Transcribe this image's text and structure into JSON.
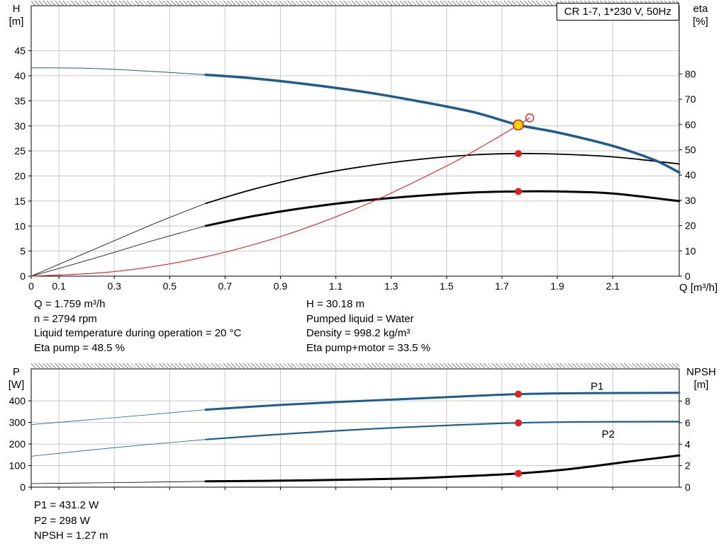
{
  "colors": {
    "blue": "#1d5c8c",
    "black": "#000000",
    "red": "#e02020",
    "yellow": "#ffd400",
    "grid": "#c8c8c8",
    "frame": "#000000"
  },
  "info_panel": {
    "left": [
      "Q = 1.759 m³/h",
      "n = 2794 rpm",
      "Liquid temperature during operation = 20 °C",
      "Eta pump = 48.5 %"
    ],
    "right": [
      "H = 30.18 m",
      "Pumped liquid = Water",
      "Density = 998.2 kg/m³",
      "Eta pump+motor = 33.5 %"
    ]
  },
  "result_panel": [
    "P1 = 431.2 W",
    "P2 = 298 W",
    "NPSH = 1.27 m"
  ],
  "chart_data": [
    {
      "id": "top",
      "type": "line",
      "title": "CR 1-7, 1*230 V, 50Hz",
      "x_axis": {
        "label": "Q [m³/h]",
        "min": 0,
        "max": 2.34,
        "ticks": [
          0,
          0.1,
          0.3,
          0.5,
          0.7,
          0.9,
          1.1,
          1.3,
          1.5,
          1.7,
          1.9,
          2.1
        ]
      },
      "y_left": {
        "label_lines": [
          "H",
          "[m]"
        ],
        "min": 0,
        "max": 54,
        "ticks": [
          0,
          5,
          10,
          15,
          20,
          25,
          30,
          35,
          40,
          45
        ]
      },
      "y_right": {
        "label_lines": [
          "eta",
          "[%]"
        ],
        "min": 0,
        "max": 107,
        "ticks": [
          0,
          10,
          20,
          30,
          40,
          50,
          60,
          70,
          80
        ]
      },
      "series": [
        {
          "name": "eta-pump-curve-thin",
          "axis": "right",
          "color": "black",
          "width": 0.8,
          "points": [
            [
              0,
              0
            ],
            [
              0.15,
              7
            ],
            [
              0.3,
              14
            ],
            [
              0.45,
              21
            ],
            [
              0.63,
              28.8
            ]
          ]
        },
        {
          "name": "eta-pump-curve",
          "axis": "right",
          "color": "black",
          "width": 1.8,
          "points": [
            [
              0.63,
              28.8
            ],
            [
              0.8,
              34.3
            ],
            [
              1.0,
              39.6
            ],
            [
              1.2,
              43.4
            ],
            [
              1.4,
              46.2
            ],
            [
              1.6,
              48.0
            ],
            [
              1.759,
              48.5
            ],
            [
              1.9,
              48.3
            ],
            [
              2.1,
              47.2
            ],
            [
              2.34,
              44.4
            ]
          ]
        },
        {
          "name": "eta-pump-motor-curve-thin",
          "axis": "right",
          "color": "black",
          "width": 0.8,
          "points": [
            [
              0,
              0
            ],
            [
              0.15,
              4.6
            ],
            [
              0.3,
              9.4
            ],
            [
              0.45,
              14.4
            ],
            [
              0.63,
              19.9
            ]
          ]
        },
        {
          "name": "eta-pump-motor-curve",
          "axis": "right",
          "color": "black",
          "width": 3,
          "points": [
            [
              0.63,
              19.9
            ],
            [
              0.8,
              23.7
            ],
            [
              1.0,
              27.2
            ],
            [
              1.2,
              29.9
            ],
            [
              1.4,
              31.8
            ],
            [
              1.6,
              33.1
            ],
            [
              1.759,
              33.5
            ],
            [
              1.9,
              33.5
            ],
            [
              2.1,
              32.7
            ],
            [
              2.34,
              29.7
            ]
          ]
        },
        {
          "name": "qh-curve-thin",
          "axis": "left",
          "color": "blue",
          "width": 1,
          "points": [
            [
              0,
              41.6
            ],
            [
              0.2,
              41.5
            ],
            [
              0.4,
              41.0
            ],
            [
              0.63,
              40.2
            ]
          ]
        },
        {
          "name": "qh-curve",
          "axis": "left",
          "color": "blue",
          "width": 3.5,
          "points": [
            [
              0.63,
              40.2
            ],
            [
              0.8,
              39.5
            ],
            [
              1.0,
              38.3
            ],
            [
              1.2,
              36.8
            ],
            [
              1.4,
              34.9
            ],
            [
              1.6,
              32.7
            ],
            [
              1.759,
              30.18
            ],
            [
              1.9,
              28.7
            ],
            [
              2.1,
              26.0
            ],
            [
              2.25,
              23.2
            ],
            [
              2.34,
              20.7
            ]
          ]
        },
        {
          "name": "system-curve",
          "axis": "left",
          "color": "red",
          "width": 1.1,
          "points": [
            [
              0,
              0
            ],
            [
              0.3,
              0.9
            ],
            [
              0.6,
              3.5
            ],
            [
              0.9,
              7.9
            ],
            [
              1.2,
              14.1
            ],
            [
              1.5,
              22.0
            ],
            [
              1.65,
              26.6
            ],
            [
              1.759,
              30.18
            ],
            [
              1.8,
              31.6
            ]
          ]
        }
      ],
      "curve_labels": [],
      "markers": [
        {
          "name": "requested-duty-point",
          "shape": "open-circle",
          "axis": "left",
          "x": 1.8,
          "v": 31.6,
          "r": 5.5
        },
        {
          "name": "duty-point",
          "shape": "dot",
          "axis": "left",
          "x": 1.759,
          "v": 30.18,
          "r": 7,
          "fill": "yellow",
          "stroke": "red",
          "interactable": true
        },
        {
          "name": "eta-pump-operating-point",
          "shape": "dot",
          "axis": "right",
          "x": 1.759,
          "v": 48.5,
          "r": 5,
          "fill": "red"
        },
        {
          "name": "eta-pump-motor-operating-point",
          "shape": "dot",
          "axis": "right",
          "x": 1.759,
          "v": 33.5,
          "r": 5,
          "fill": "red"
        }
      ]
    },
    {
      "id": "bottom",
      "type": "line",
      "title": "",
      "x_axis": {
        "label": "",
        "min": 0,
        "max": 2.34,
        "ticks": [
          0,
          0.1,
          0.3,
          0.5,
          0.7,
          0.9,
          1.1,
          1.3,
          1.5,
          1.7,
          1.9,
          2.1
        ]
      },
      "y_left": {
        "label_lines": [
          "P",
          "[W]"
        ],
        "min": 0,
        "max": 548,
        "ticks": [
          0,
          100,
          200,
          300,
          400
        ]
      },
      "y_right": {
        "label_lines": [
          "NPSH",
          "[m]"
        ],
        "min": 0,
        "max": 11,
        "ticks": [
          0,
          2,
          4,
          6,
          8
        ]
      },
      "series": [
        {
          "name": "p1-curve-thin",
          "axis": "left",
          "color": "blue",
          "width": 0.8,
          "points": [
            [
              0,
              290
            ],
            [
              0.3,
              322
            ],
            [
              0.63,
              359
            ]
          ]
        },
        {
          "name": "p1-curve",
          "axis": "left",
          "color": "blue",
          "width": 3,
          "points": [
            [
              0.63,
              359
            ],
            [
              0.9,
              381
            ],
            [
              1.2,
              400
            ],
            [
              1.5,
              417
            ],
            [
              1.759,
              431.2
            ],
            [
              2.0,
              435.5
            ],
            [
              2.34,
              437.5
            ]
          ]
        },
        {
          "name": "p2-curve-thin",
          "axis": "left",
          "color": "blue",
          "width": 0.8,
          "points": [
            [
              0,
              143
            ],
            [
              0.3,
              183
            ],
            [
              0.63,
              221
            ]
          ]
        },
        {
          "name": "p2-curve",
          "axis": "left",
          "color": "blue",
          "width": 2.2,
          "points": [
            [
              0.63,
              221
            ],
            [
              0.9,
              245
            ],
            [
              1.2,
              268
            ],
            [
              1.5,
              286
            ],
            [
              1.759,
              298
            ],
            [
              2.0,
              302.5
            ],
            [
              2.34,
              304
            ]
          ]
        },
        {
          "name": "npsh-curve-thin",
          "axis": "right",
          "color": "black",
          "width": 0.8,
          "points": [
            [
              0,
              0.33
            ],
            [
              0.3,
              0.42
            ],
            [
              0.63,
              0.54
            ]
          ]
        },
        {
          "name": "npsh-curve",
          "axis": "right",
          "color": "black",
          "width": 3,
          "points": [
            [
              0.63,
              0.54
            ],
            [
              1.0,
              0.63
            ],
            [
              1.3,
              0.77
            ],
            [
              1.5,
              0.95
            ],
            [
              1.759,
              1.27
            ],
            [
              1.95,
              1.7
            ],
            [
              2.15,
              2.35
            ],
            [
              2.34,
              2.95
            ]
          ]
        }
      ],
      "curve_labels": [
        {
          "text": "P1",
          "axis": "left",
          "x": 2.02,
          "v": 452,
          "color": "blue"
        },
        {
          "text": "P2",
          "axis": "left",
          "x": 2.06,
          "v": 230,
          "color": "blue"
        }
      ],
      "markers": [
        {
          "name": "p1-operating-point",
          "shape": "dot",
          "axis": "left",
          "x": 1.759,
          "v": 431.2,
          "r": 5,
          "fill": "red"
        },
        {
          "name": "p2-operating-point",
          "shape": "dot",
          "axis": "left",
          "x": 1.759,
          "v": 298,
          "r": 5,
          "fill": "red"
        },
        {
          "name": "npsh-operating-point",
          "shape": "dot",
          "axis": "right",
          "x": 1.759,
          "v": 1.27,
          "r": 5,
          "fill": "red"
        }
      ]
    }
  ]
}
